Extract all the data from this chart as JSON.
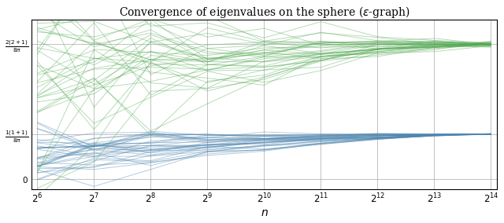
{
  "title": "Convergence of eigenvalues on the sphere (ε-graph)",
  "xlabel": "$n$",
  "x_powers": [
    6,
    7,
    8,
    9,
    10,
    11,
    12,
    13,
    14
  ],
  "lambda1": 0.07957747154594767,
  "lambda2": 0.238732414637843,
  "n_blue_lines": 35,
  "n_green_lines": 35,
  "blue_color": "#4f86b0",
  "green_color": "#55aa55",
  "blue_alpha": 0.45,
  "green_alpha": 0.45,
  "lw": 0.65,
  "figsize": [
    6.4,
    2.84
  ],
  "dpi": 100,
  "background": "#ffffff",
  "grid_color": "#aaaaaa"
}
